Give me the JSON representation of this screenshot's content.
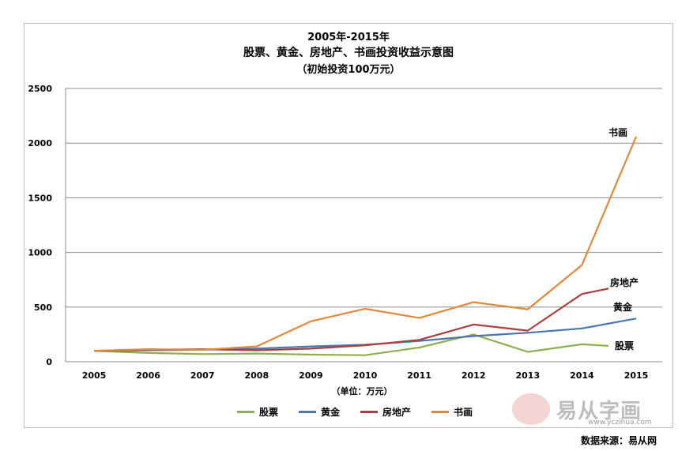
{
  "chart_data": {
    "type": "line",
    "title": "2005年-2015年",
    "subtitle": "股票、黄金、房地产、书画投资收益示意图",
    "note": "（初始投资100万元）",
    "xlabel": "（单位：万元）",
    "ylabel": "",
    "categories": [
      "2005",
      "2006",
      "2007",
      "2008",
      "2009",
      "2010",
      "2011",
      "2012",
      "2013",
      "2014",
      "2015"
    ],
    "ylim": [
      0,
      2500
    ],
    "yticks": [
      "0",
      "500",
      "1000",
      "1500",
      "2000",
      "2500"
    ],
    "grid": true,
    "legend_position": "bottom",
    "series": [
      {
        "name": "股票",
        "color": "#8db04f",
        "values": [
          100,
          80,
          70,
          75,
          65,
          60,
          130,
          250,
          90,
          160,
          145
        ]
      },
      {
        "name": "黄金",
        "color": "#4a76ad",
        "values": [
          100,
          105,
          110,
          120,
          140,
          155,
          190,
          235,
          265,
          305,
          395
        ]
      },
      {
        "name": "房地产",
        "color": "#a8403e",
        "values": [
          100,
          110,
          115,
          105,
          120,
          150,
          200,
          340,
          285,
          620,
          670
        ]
      },
      {
        "name": "书画",
        "color": "#e0893a",
        "values": [
          100,
          115,
          110,
          140,
          370,
          485,
          400,
          545,
          480,
          885,
          2060
        ]
      }
    ]
  },
  "watermark": {
    "brand": "易从字画",
    "url": "www.yczihua.com"
  },
  "source": "数据来源：易从网"
}
